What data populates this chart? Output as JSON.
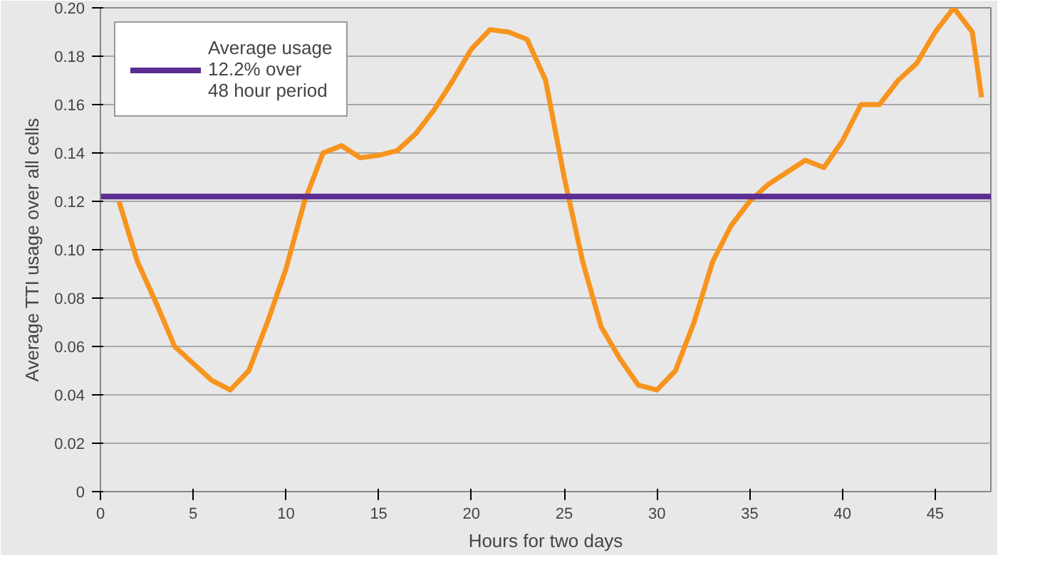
{
  "chart_data": {
    "type": "line",
    "xlabel": "Hours for two days",
    "ylabel": "Average TTI usage over all cells",
    "xlim": [
      0,
      48
    ],
    "xticks": [
      0,
      5,
      10,
      15,
      20,
      25,
      30,
      35,
      40,
      45
    ],
    "ylim": [
      0,
      0.2
    ],
    "yticks": [
      0,
      {
        "value": 0.02,
        "label": "0.02"
      },
      {
        "value": 0.04,
        "label": "0.04"
      },
      {
        "value": 0.06,
        "label": "0.06"
      },
      {
        "value": 0.08,
        "label": "0.08"
      },
      {
        "value": 0.1,
        "label": "0.10"
      },
      {
        "value": 0.12,
        "label": "0.12"
      },
      {
        "value": 0.14,
        "label": "0.14"
      },
      {
        "value": 0.16,
        "label": "0.16"
      },
      {
        "value": 0.18,
        "label": "0.18"
      },
      {
        "value": 0.2,
        "label": "0.20"
      }
    ],
    "grid": "y",
    "legend": "top left",
    "series": [
      {
        "color": "#f7941d",
        "x": [
          1,
          2,
          3,
          4,
          5,
          6,
          7,
          8,
          9,
          10,
          11,
          12,
          13,
          14,
          15,
          16,
          17,
          18,
          19,
          20,
          21,
          22,
          23,
          24,
          25,
          26,
          27,
          28,
          29,
          30,
          31,
          32,
          33,
          34,
          35,
          36,
          37,
          38,
          39,
          40,
          41,
          42,
          43,
          44,
          45,
          46,
          47,
          47.5
        ],
        "values": [
          0.12,
          0.095,
          0.078,
          0.06,
          0.053,
          0.046,
          0.042,
          0.05,
          0.07,
          0.092,
          0.12,
          0.14,
          0.143,
          0.138,
          0.139,
          0.141,
          0.148,
          0.158,
          0.17,
          0.183,
          0.191,
          0.19,
          0.187,
          0.17,
          0.13,
          0.095,
          0.068,
          0.055,
          0.044,
          0.042,
          0.05,
          0.07,
          0.095,
          0.11,
          0.12,
          0.127,
          0.132,
          0.137,
          0.134,
          0.145,
          0.16,
          0.16,
          0.17,
          0.177,
          0.19,
          0.2,
          0.19,
          0.163
        ]
      },
      {
        "name": "Average usage\n12.2% over\n48 hour period",
        "color": "#5b2c91",
        "x": [
          0,
          48
        ],
        "values": [
          0.122,
          0.122
        ]
      }
    ]
  }
}
